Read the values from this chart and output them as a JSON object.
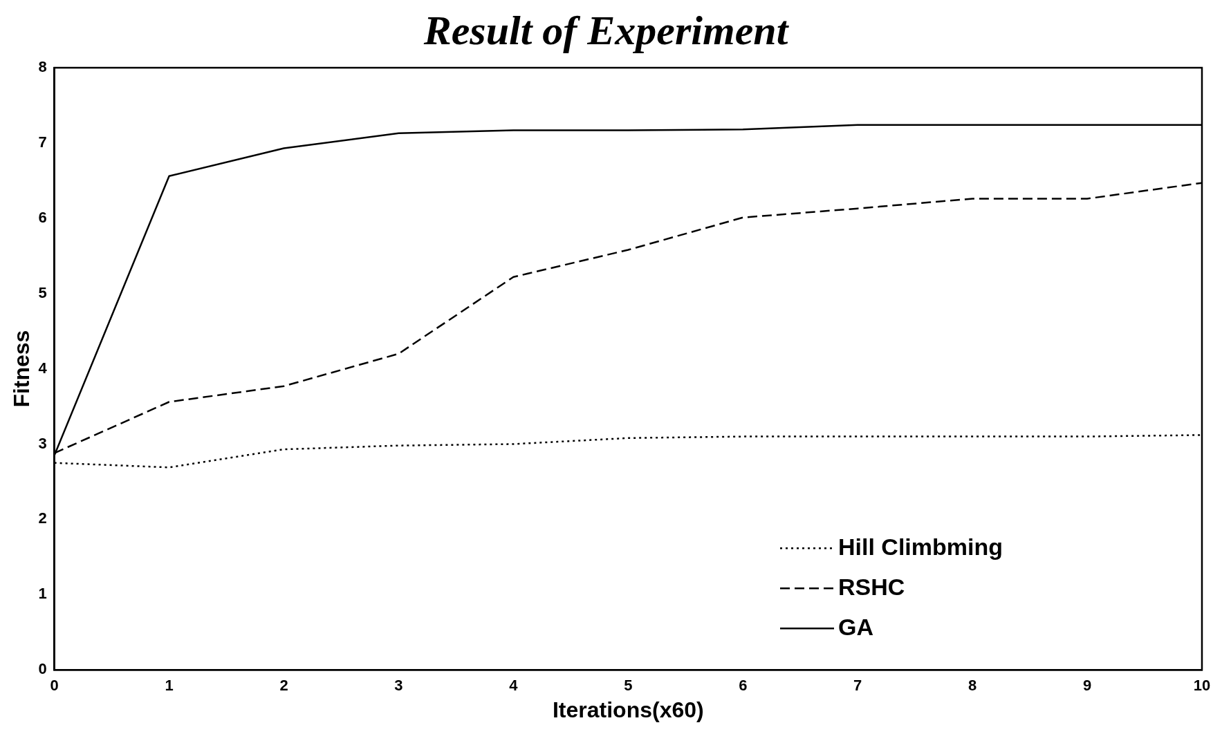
{
  "chart_data": {
    "type": "line",
    "title": "Result of Experiment",
    "xlabel": "Iterations(x60)",
    "ylabel": "Fitness",
    "x": [
      0,
      1,
      2,
      3,
      4,
      5,
      6,
      7,
      8,
      9,
      10
    ],
    "series": [
      {
        "name": "Hill Climbming",
        "color": "#000000",
        "line_style": "dotted",
        "values": [
          2.75,
          2.69,
          2.93,
          2.98,
          3.0,
          3.08,
          3.1,
          3.1,
          3.1,
          3.1,
          3.12
        ]
      },
      {
        "name": "RSHC",
        "color": "#000000",
        "line_style": "dashed",
        "values": [
          2.88,
          3.56,
          3.77,
          4.2,
          5.22,
          5.58,
          6.01,
          6.13,
          6.26,
          6.26,
          6.47
        ]
      },
      {
        "name": "GA",
        "color": "#000000",
        "line_style": "solid",
        "values": [
          2.85,
          6.56,
          6.93,
          7.13,
          7.17,
          7.17,
          7.18,
          7.24,
          7.24,
          7.24,
          7.24
        ]
      }
    ],
    "xlim": [
      0,
      10
    ],
    "xticks": [
      0,
      1,
      2,
      3,
      4,
      5,
      6,
      7,
      8,
      9,
      10
    ],
    "ylim": [
      0,
      8
    ],
    "yticks": [
      0,
      1,
      2,
      3,
      4,
      5,
      6,
      7,
      8
    ],
    "grid": false,
    "legend": "bottom right",
    "marker": "none"
  }
}
